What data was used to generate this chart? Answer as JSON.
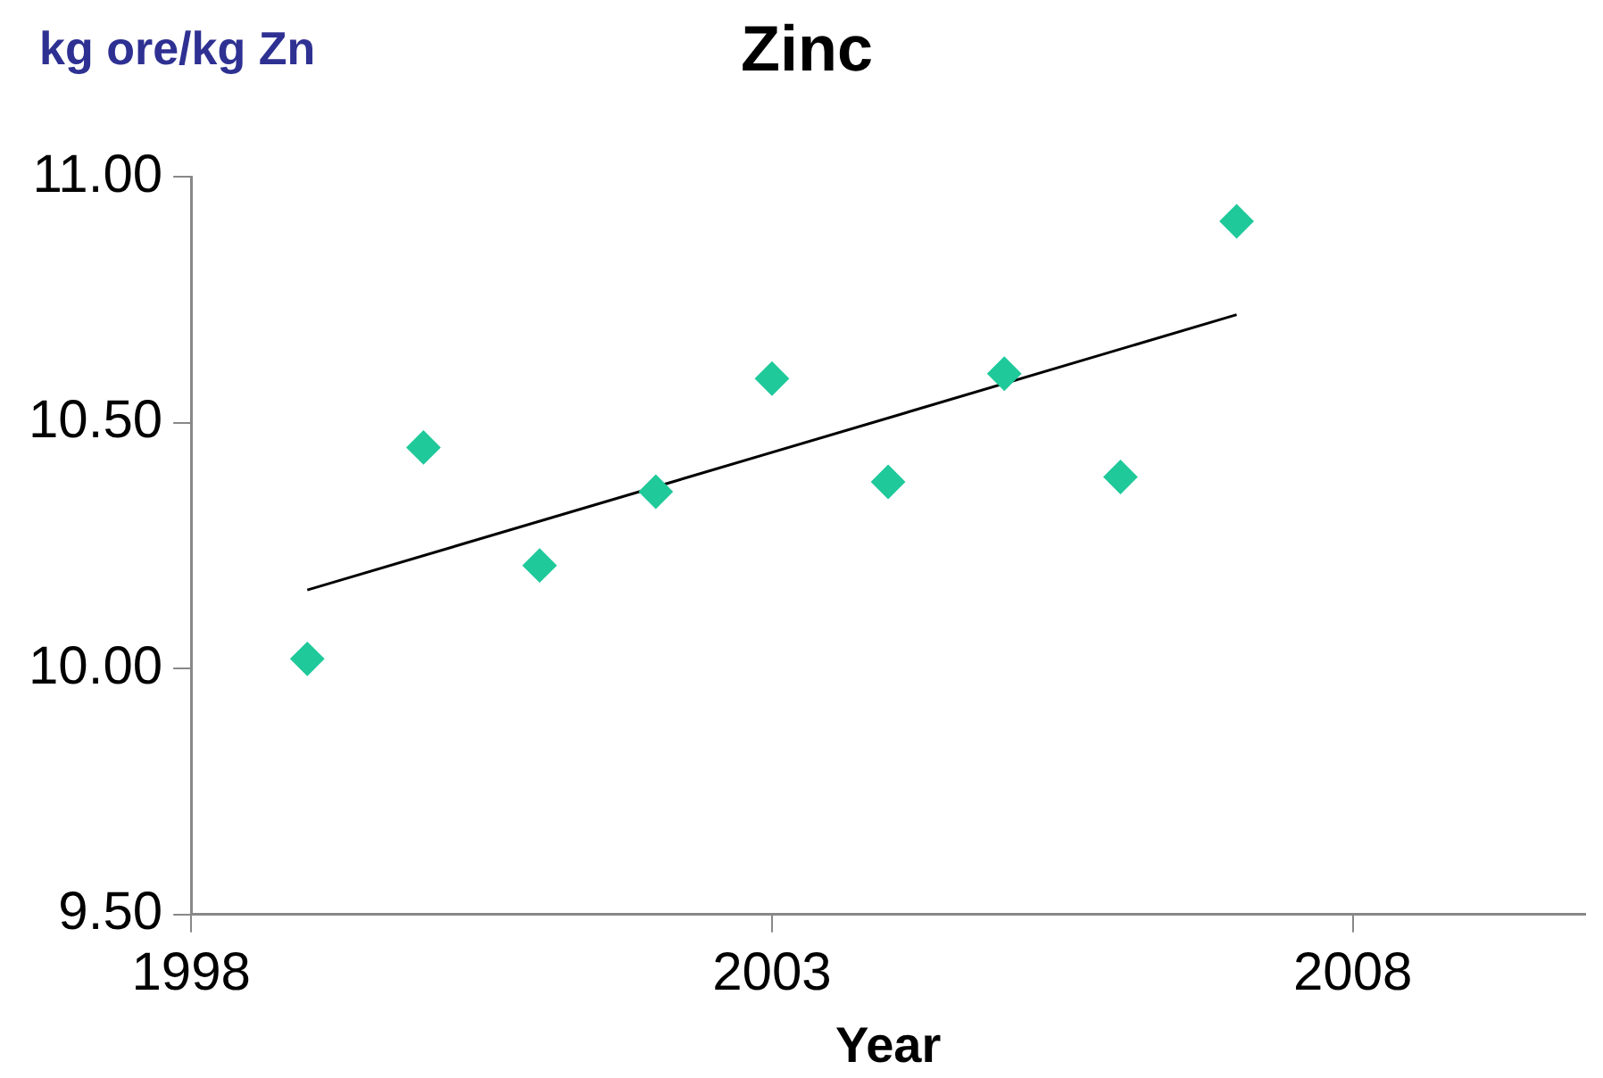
{
  "chart_data": {
    "type": "scatter",
    "title": "Zinc",
    "ylabel": "kg ore/kg Zn",
    "xlabel": "Year",
    "xlim": [
      1998,
      2010
    ],
    "xticks": [
      1998,
      2003,
      2008
    ],
    "ylim": [
      9.5,
      11.0
    ],
    "yticks": [
      {
        "value": 9.5,
        "label": "9.50"
      },
      {
        "value": 10.0,
        "label": "10.00"
      },
      {
        "value": 10.5,
        "label": "10.50"
      },
      {
        "value": 11.0,
        "label": "11.00"
      }
    ],
    "grid": false,
    "legend": false,
    "marker": "diamond",
    "series": [
      {
        "color": "#1fc99a",
        "x": [
          1999,
          2000,
          2001,
          2002,
          2003,
          2004,
          2005,
          2006,
          2007
        ],
        "values": [
          10.02,
          10.45,
          10.21,
          10.36,
          10.59,
          10.38,
          10.6,
          10.39,
          10.91
        ]
      },
      {
        "type": "line",
        "color": "#000000",
        "marker": "none",
        "line_style": "solid",
        "x": [
          1999,
          2007
        ],
        "values": [
          10.16,
          10.72
        ]
      }
    ]
  }
}
